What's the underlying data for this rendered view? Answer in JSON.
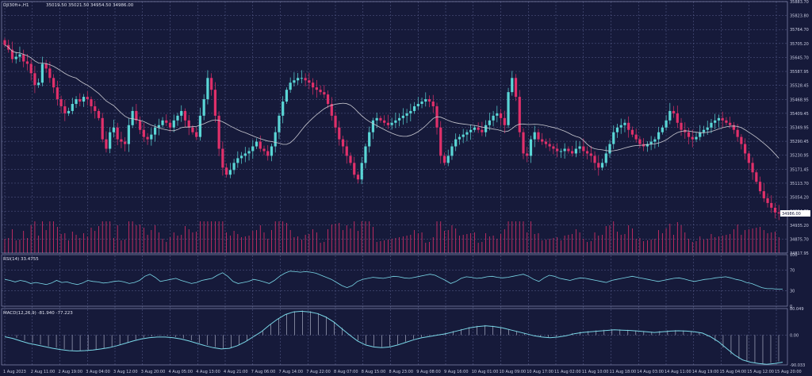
{
  "header": {
    "symbol": "DJI30ft+,H1",
    "ohlc": "35019.50 35021.50 34954.50 34986.00"
  },
  "colors": {
    "background": "#161a3a",
    "bull": "#5ad6d6",
    "bear": "#e0306a",
    "ma": "#c8c8d0",
    "rsi": "#7ad8e8",
    "macd_line": "#7ad8e8",
    "macd_hist": "#c0c4d8",
    "price_tag_bg": "#ffffff"
  },
  "price_axis": {
    "ticks": [
      "35883.70",
      "35823.80",
      "35764.70",
      "35705.20",
      "35645.70",
      "35587.95",
      "35528.45",
      "35468.95",
      "35409.45",
      "35349.95",
      "35290.45",
      "35230.95",
      "35171.45",
      "35113.70",
      "35054.20",
      "34994.70",
      "34935.20",
      "34875.70",
      "34817.95"
    ],
    "current": "34986.00"
  },
  "time_axis": [
    "1 Aug 2023",
    "2 Aug 11:00",
    "2 Aug 19:00",
    "3 Aug 04:00",
    "3 Aug 12:00",
    "3 Aug 20:00",
    "4 Aug 05:00",
    "4 Aug 13:00",
    "4 Aug 21:00",
    "7 Aug 06:00",
    "7 Aug 14:00",
    "7 Aug 22:00",
    "8 Aug 07:00",
    "8 Aug 15:00",
    "8 Aug 23:00",
    "9 Aug 08:00",
    "9 Aug 16:00",
    "10 Aug 01:00",
    "10 Aug 09:00",
    "10 Aug 17:00",
    "11 Aug 02:00",
    "11 Aug 10:00",
    "11 Aug 18:00",
    "14 Aug 03:00",
    "14 Aug 11:00",
    "14 Aug 19:00",
    "15 Aug 04:00",
    "15 Aug 12:00",
    "15 Aug 20:00"
  ],
  "rsi": {
    "label": "RSI(14) 33.4755",
    "ticks": [
      "100",
      "70",
      "30",
      "0"
    ]
  },
  "macd": {
    "label": "MACD(12,26,9) -81.940 -77.223",
    "ticks": [
      "80.049",
      "0.00",
      "-90.033"
    ]
  },
  "chart_data": [
    {
      "type": "candlestick",
      "ylim": [
        34817.95,
        35883.7
      ],
      "closes": [
        35700,
        35680,
        35640,
        35650,
        35660,
        35630,
        35620,
        35580,
        35530,
        35540,
        35620,
        35600,
        35560,
        35520,
        35470,
        35440,
        35410,
        35420,
        35450,
        35470,
        35460,
        35480,
        35470,
        35440,
        35420,
        35390,
        35300,
        35260,
        35330,
        35350,
        35300,
        35290,
        35280,
        35360,
        35420,
        35380,
        35340,
        35310,
        35300,
        35320,
        35350,
        35360,
        35380,
        35370,
        35350,
        35380,
        35400,
        35420,
        35380,
        35350,
        35330,
        35310,
        35400,
        35470,
        35560,
        35510,
        35400,
        35260,
        35180,
        35150,
        35170,
        35200,
        35220,
        35230,
        35240,
        35250,
        35270,
        35290,
        35260,
        35250,
        35230,
        35270,
        35330,
        35400,
        35460,
        35510,
        35540,
        35550,
        35560,
        35560,
        35550,
        35540,
        35520,
        35510,
        35500,
        35490,
        35450,
        35400,
        35350,
        35300,
        35270,
        35230,
        35200,
        35150,
        35130,
        35200,
        35270,
        35330,
        35380,
        35390,
        35380,
        35370,
        35360,
        35370,
        35380,
        35390,
        35400,
        35410,
        35420,
        35440,
        35450,
        35460,
        35470,
        35460,
        35440,
        35350,
        35230,
        35200,
        35230,
        35270,
        35300,
        35310,
        35320,
        35330,
        35340,
        35350,
        35340,
        35330,
        35360,
        35380,
        35400,
        35410,
        35390,
        35360,
        35500,
        35560,
        35480,
        35330,
        35240,
        35230,
        35300,
        35330,
        35300,
        35290,
        35280,
        35270,
        35260,
        35250,
        35250,
        35260,
        35250,
        35240,
        35260,
        35270,
        35250,
        35240,
        35230,
        35200,
        35180,
        35200,
        35240,
        35280,
        35330,
        35350,
        35360,
        35370,
        35340,
        35320,
        35300,
        35280,
        35270,
        35280,
        35290,
        35300,
        35330,
        35350,
        35380,
        35420,
        35410,
        35370,
        35340,
        35330,
        35310,
        35300,
        35310,
        35330,
        35340,
        35350,
        35370,
        35380,
        35390,
        35380,
        35370,
        35360,
        35340,
        35310,
        35280,
        35240,
        35200,
        35160,
        35120,
        35080,
        35050,
        35030,
        35010,
        34990,
        34986
      ],
      "volume_axis": "volume histogram"
    },
    {
      "type": "line",
      "name": "RSI(14)",
      "ylim": [
        0,
        100
      ],
      "values": [
        52,
        50,
        47,
        50,
        48,
        44,
        46,
        44,
        42,
        45,
        50,
        46,
        47,
        44,
        42,
        45,
        50,
        48,
        47,
        45,
        46,
        48,
        49,
        47,
        44,
        46,
        50,
        58,
        62,
        56,
        48,
        50,
        52,
        54,
        50,
        47,
        44,
        46,
        50,
        52,
        54,
        60,
        65,
        58,
        48,
        44,
        46,
        48,
        52,
        50,
        47,
        44,
        50,
        58,
        64,
        68,
        67,
        66,
        67,
        66,
        64,
        60,
        56,
        52,
        46,
        40,
        36,
        40,
        48,
        52,
        54,
        56,
        55,
        54,
        56,
        58,
        57,
        55,
        54,
        56,
        58,
        60,
        62,
        60,
        55,
        50,
        44,
        48,
        54,
        57,
        56,
        54,
        55,
        57,
        58,
        56,
        55,
        56,
        58,
        60,
        62,
        58,
        52,
        48,
        55,
        60,
        58,
        54,
        52,
        50,
        53,
        55,
        54,
        52,
        50,
        48,
        46,
        50,
        52,
        54,
        56,
        58,
        56,
        54,
        52,
        50,
        48,
        50,
        52,
        54,
        55,
        53,
        50,
        48,
        50,
        52,
        53,
        55,
        56,
        57,
        55,
        52,
        50,
        46,
        44,
        40,
        36,
        34,
        34,
        33,
        33
      ],
      "bands": [
        70,
        30
      ]
    },
    {
      "type": "line+bar",
      "name": "MACD(12,26,9)",
      "ylim": [
        -90.033,
        80.049
      ],
      "line": [
        -5,
        -10,
        -18,
        -25,
        -30,
        -35,
        -40,
        -44,
        -47,
        -48,
        -47,
        -45,
        -42,
        -38,
        -32,
        -25,
        -18,
        -12,
        -8,
        -6,
        -6,
        -8,
        -12,
        -18,
        -25,
        -32,
        -38,
        -42,
        -40,
        -32,
        -20,
        -5,
        10,
        30,
        48,
        62,
        70,
        72,
        70,
        65,
        55,
        40,
        20,
        0,
        -18,
        -30,
        -36,
        -38,
        -36,
        -30,
        -22,
        -14,
        -8,
        -4,
        0,
        4,
        10,
        16,
        22,
        26,
        28,
        26,
        22,
        16,
        10,
        4,
        -2,
        -6,
        -8,
        -6,
        -2,
        4,
        8,
        10,
        12,
        14,
        16,
        15,
        14,
        12,
        10,
        8,
        10,
        12,
        13,
        12,
        10,
        6,
        -5,
        -20,
        -40,
        -60,
        -75,
        -82,
        -86,
        -88,
        -86,
        -82
      ],
      "hist": [
        0,
        -8,
        -16,
        -22,
        -28,
        -34,
        -38,
        -42,
        -46,
        -48,
        -46,
        -44,
        -40,
        -36,
        -30,
        -22,
        -14,
        -8,
        -4,
        -2,
        -2,
        -6,
        -10,
        -16,
        -24,
        -30,
        -36,
        -40,
        -38,
        -30,
        -18,
        -4,
        12,
        32,
        50,
        64,
        72,
        74,
        72,
        66,
        56,
        40,
        22,
        2,
        -16,
        -28,
        -34,
        -36,
        -34,
        -28,
        -20,
        -12,
        -6,
        -2,
        2,
        6,
        12,
        18,
        24,
        28,
        30,
        28,
        24,
        18,
        12,
        6,
        0,
        -4,
        -6,
        -4,
        0,
        6,
        10,
        12,
        14,
        16,
        18,
        17,
        16,
        14,
        12,
        10,
        12,
        14,
        15,
        14,
        12,
        8,
        -4,
        -18,
        -38,
        -58,
        -72,
        -80,
        -84,
        -86,
        -84,
        -80
      ]
    }
  ]
}
